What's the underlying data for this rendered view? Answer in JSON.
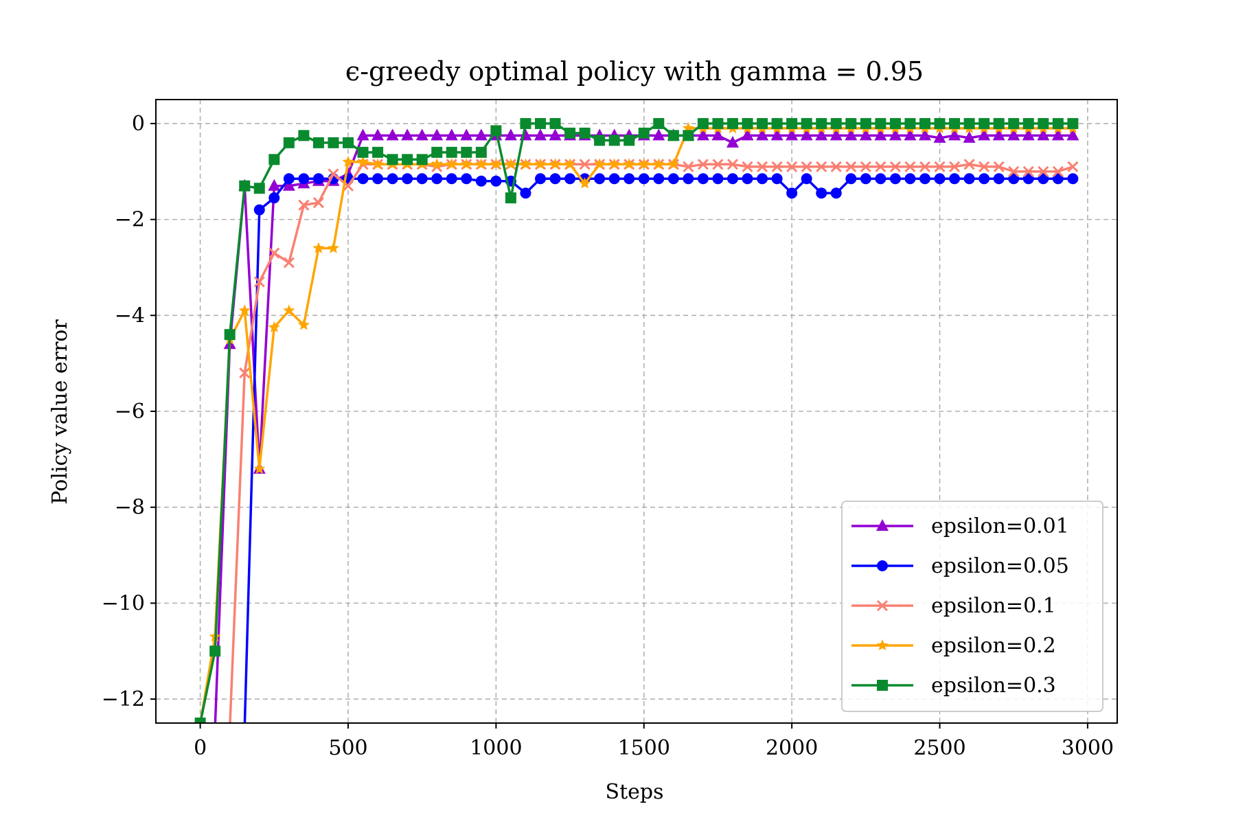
{
  "chart_data": {
    "type": "line",
    "title": "ϵ-greedy optimal policy with gamma = 0.95",
    "xlabel": "Steps",
    "ylabel": "Policy value error",
    "xlim": [
      -150,
      3100
    ],
    "ylim": [
      -12.5,
      0.5
    ],
    "xticks": [
      0,
      500,
      1000,
      1500,
      2000,
      2500,
      3000
    ],
    "yticks": [
      0,
      -2,
      -4,
      -6,
      -8,
      -10,
      -12
    ],
    "xtick_labels": [
      "0",
      "500",
      "1000",
      "1500",
      "2000",
      "2500",
      "3000"
    ],
    "ytick_labels": [
      "0",
      "−2",
      "−4",
      "−6",
      "−8",
      "−10",
      "−12"
    ],
    "grid": true,
    "legend_position": "lower-right",
    "x": [
      0,
      50,
      100,
      150,
      200,
      250,
      300,
      350,
      400,
      450,
      500,
      550,
      600,
      650,
      700,
      750,
      800,
      850,
      900,
      950,
      1000,
      1050,
      1100,
      1150,
      1200,
      1250,
      1300,
      1350,
      1400,
      1450,
      1500,
      1550,
      1600,
      1650,
      1700,
      1750,
      1800,
      1850,
      1900,
      1950,
      2000,
      2050,
      2100,
      2150,
      2200,
      2250,
      2300,
      2350,
      2400,
      2450,
      2500,
      2550,
      2600,
      2650,
      2700,
      2750,
      2800,
      2850,
      2900,
      2950
    ],
    "series": [
      {
        "name": "epsilon=0.01",
        "color": "#9400d3",
        "marker": "triangle",
        "values": [
          -12.6,
          -12.6,
          -4.6,
          -1.3,
          -7.2,
          -1.3,
          -1.3,
          -1.25,
          -1.2,
          -1.2,
          -1.05,
          -0.25,
          -0.25,
          -0.25,
          -0.25,
          -0.25,
          -0.25,
          -0.25,
          -0.25,
          -0.25,
          -0.25,
          -0.25,
          -0.25,
          -0.25,
          -0.25,
          -0.25,
          -0.25,
          -0.25,
          -0.25,
          -0.25,
          -0.25,
          -0.25,
          -0.25,
          -0.25,
          -0.25,
          -0.25,
          -0.4,
          -0.25,
          -0.25,
          -0.25,
          -0.25,
          -0.25,
          -0.25,
          -0.25,
          -0.25,
          -0.25,
          -0.25,
          -0.25,
          -0.25,
          -0.25,
          -0.3,
          -0.25,
          -0.3,
          -0.25,
          -0.25,
          -0.25,
          -0.25,
          -0.25,
          -0.25,
          -0.25
        ]
      },
      {
        "name": "epsilon=0.05",
        "color": "#0000ff",
        "marker": "circle",
        "values": [
          -12.6,
          -12.6,
          -12.6,
          -12.6,
          -1.8,
          -1.55,
          -1.15,
          -1.15,
          -1.15,
          -1.15,
          -1.15,
          -1.15,
          -1.15,
          -1.15,
          -1.15,
          -1.15,
          -1.15,
          -1.15,
          -1.15,
          -1.2,
          -1.2,
          -1.2,
          -1.45,
          -1.15,
          -1.15,
          -1.15,
          -1.15,
          -1.15,
          -1.15,
          -1.15,
          -1.15,
          -1.15,
          -1.15,
          -1.15,
          -1.15,
          -1.15,
          -1.15,
          -1.15,
          -1.15,
          -1.15,
          -1.45,
          -1.15,
          -1.45,
          -1.45,
          -1.15,
          -1.15,
          -1.15,
          -1.15,
          -1.15,
          -1.15,
          -1.15,
          -1.15,
          -1.15,
          -1.15,
          -1.15,
          -1.15,
          -1.15,
          -1.15,
          -1.15,
          -1.15
        ]
      },
      {
        "name": "epsilon=0.1",
        "color": "#fa8072",
        "marker": "x",
        "values": [
          -12.6,
          -12.6,
          -12.6,
          -5.2,
          -3.3,
          -2.7,
          -2.9,
          -1.7,
          -1.65,
          -1.05,
          -1.3,
          -0.85,
          -0.85,
          -0.85,
          -0.85,
          -0.85,
          -0.9,
          -0.85,
          -0.85,
          -0.85,
          -0.85,
          -0.85,
          -0.85,
          -0.85,
          -0.85,
          -0.85,
          -0.85,
          -0.85,
          -0.85,
          -0.85,
          -0.85,
          -0.85,
          -0.85,
          -0.9,
          -0.85,
          -0.85,
          -0.85,
          -0.9,
          -0.9,
          -0.9,
          -0.9,
          -0.9,
          -0.9,
          -0.9,
          -0.9,
          -0.9,
          -0.9,
          -0.9,
          -0.9,
          -0.9,
          -0.9,
          -0.9,
          -0.85,
          -0.9,
          -0.9,
          -1.0,
          -1.0,
          -1.0,
          -1.0,
          -0.9
        ]
      },
      {
        "name": "epsilon=0.2",
        "color": "#ffa500",
        "marker": "star",
        "values": [
          -12.5,
          -10.7,
          -4.5,
          -3.9,
          -7.2,
          -4.25,
          -3.9,
          -4.2,
          -2.6,
          -2.6,
          -0.8,
          -0.8,
          -0.85,
          -0.85,
          -0.85,
          -0.85,
          -0.85,
          -0.85,
          -0.85,
          -0.85,
          -0.85,
          -0.85,
          -0.85,
          -0.85,
          -0.85,
          -0.85,
          -1.25,
          -0.85,
          -0.85,
          -0.85,
          -0.85,
          -0.85,
          -0.85,
          -0.1,
          -0.1,
          -0.1,
          -0.1,
          -0.1,
          -0.1,
          -0.1,
          -0.1,
          -0.1,
          -0.1,
          -0.1,
          -0.1,
          -0.1,
          -0.1,
          -0.1,
          -0.1,
          -0.1,
          -0.1,
          -0.1,
          -0.1,
          -0.1,
          -0.1,
          -0.1,
          -0.1,
          -0.1,
          -0.1,
          -0.1
        ]
      },
      {
        "name": "epsilon=0.3",
        "color": "#0a8a2e",
        "marker": "square",
        "values": [
          -12.5,
          -11.0,
          -4.4,
          -1.3,
          -1.35,
          -0.75,
          -0.4,
          -0.25,
          -0.4,
          -0.4,
          -0.4,
          -0.6,
          -0.6,
          -0.75,
          -0.75,
          -0.75,
          -0.6,
          -0.6,
          -0.6,
          -0.6,
          -0.15,
          -1.55,
          0.0,
          0.0,
          0.0,
          -0.2,
          -0.2,
          -0.35,
          -0.35,
          -0.35,
          -0.2,
          0.0,
          -0.25,
          -0.25,
          0.0,
          0.0,
          0.0,
          0.0,
          0.0,
          0.0,
          0.0,
          0.0,
          0.0,
          0.0,
          0.0,
          0.0,
          0.0,
          0.0,
          0.0,
          0.0,
          0.0,
          0.0,
          0.0,
          0.0,
          0.0,
          0.0,
          0.0,
          0.0,
          0.0,
          0.0
        ]
      }
    ]
  }
}
